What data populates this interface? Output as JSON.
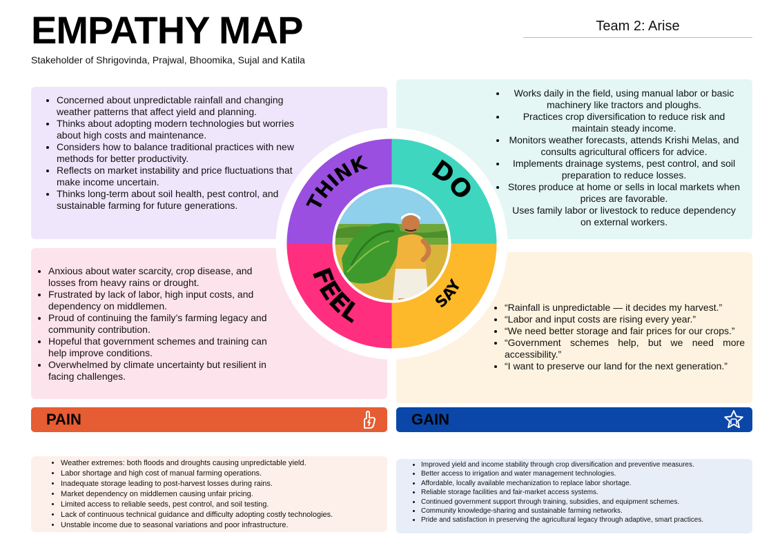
{
  "header": {
    "title": "EMPATHY MAP",
    "subtitle": "Stakeholder of Shrigovinda, Prajwal, Bhoomika, Sujal and Katila",
    "team": "Team 2: Arise"
  },
  "quadrants": {
    "think": {
      "label": "THINK",
      "color": "#9a4fe0",
      "items": [
        "Concerned about unpredictable rainfall and changing weather patterns that affect yield and planning.",
        "Thinks about adopting modern technologies but worries about high costs and maintenance.",
        "Considers how to balance traditional practices with new methods for better productivity.",
        "Reflects on market instability and price fluctuations that make income uncertain.",
        "Thinks long-term about soil health, pest control, and sustainable farming for future generations."
      ]
    },
    "do": {
      "label": "DO",
      "color": "#3ed6be",
      "items": [
        "Works daily in the field, using manual labor or basic machinery like tractors and ploughs.",
        "Practices crop diversification to reduce risk and maintain steady income.",
        "Monitors weather forecasts, attends Krishi Melas, and consults agricultural officers for advice.",
        "Implements drainage systems, pest control, and soil preparation to reduce losses.",
        "Stores produce at home or sells in local markets when prices are favorable.",
        "Uses family labor or livestock to reduce dependency on external workers."
      ]
    },
    "feel": {
      "label": "FEEL",
      "color": "#ff2e7e",
      "items": [
        "Anxious about water scarcity, crop disease, and losses from heavy rains or drought.",
        "Frustrated by lack of labor, high input costs, and dependency on middlemen.",
        "Proud of continuing the family’s farming legacy and community contribution.",
        "Hopeful that government schemes and training can help improve conditions.",
        "Overwhelmed by climate uncertainty but resilient in facing challenges."
      ]
    },
    "say": {
      "label": "SAY",
      "color": "#fdb92a",
      "items": [
        "“Rainfall is unpredictable — it decides my harvest.”",
        "“Labor and input costs are rising every year.”",
        "“We need better storage and fair prices for our crops.”",
        "“Government schemes help, but we need more accessibility.”",
        "“I want to preserve our land for the next generation.”"
      ]
    }
  },
  "pain": {
    "label": "PAIN",
    "icon": "lightning-hand-icon",
    "color": "#e65c33",
    "items": [
      "Weather extremes: both floods and droughts causing unpredictable yield.",
      "Labor shortage and high cost of manual farming operations.",
      "Inadequate storage leading to post-harvest losses during rains.",
      "Market dependency on middlemen causing unfair pricing.",
      "Limited access to reliable seeds, pest control, and soil testing.",
      "Lack of continuous technical guidance and difficulty adopting costly technologies.",
      "Unstable income due to seasonal variations and poor infrastructure."
    ]
  },
  "gain": {
    "label": "GAIN",
    "icon": "star-icon",
    "color": "#0a47a8",
    "items": [
      "Improved yield and income stability through crop diversification and preventive measures.",
      "Better access to irrigation and water management technologies.",
      "Affordable, locally available mechanization to replace labor shortage.",
      "Reliable storage facilities and fair-market access systems.",
      "Continued government support through training, subsidies, and equipment schemes.",
      "Community knowledge-sharing and sustainable farming networks.",
      "Pride and satisfaction in preserving the agricultural legacy through adaptive, smart practices."
    ]
  },
  "center": {
    "image": "farmer-illustration"
  }
}
